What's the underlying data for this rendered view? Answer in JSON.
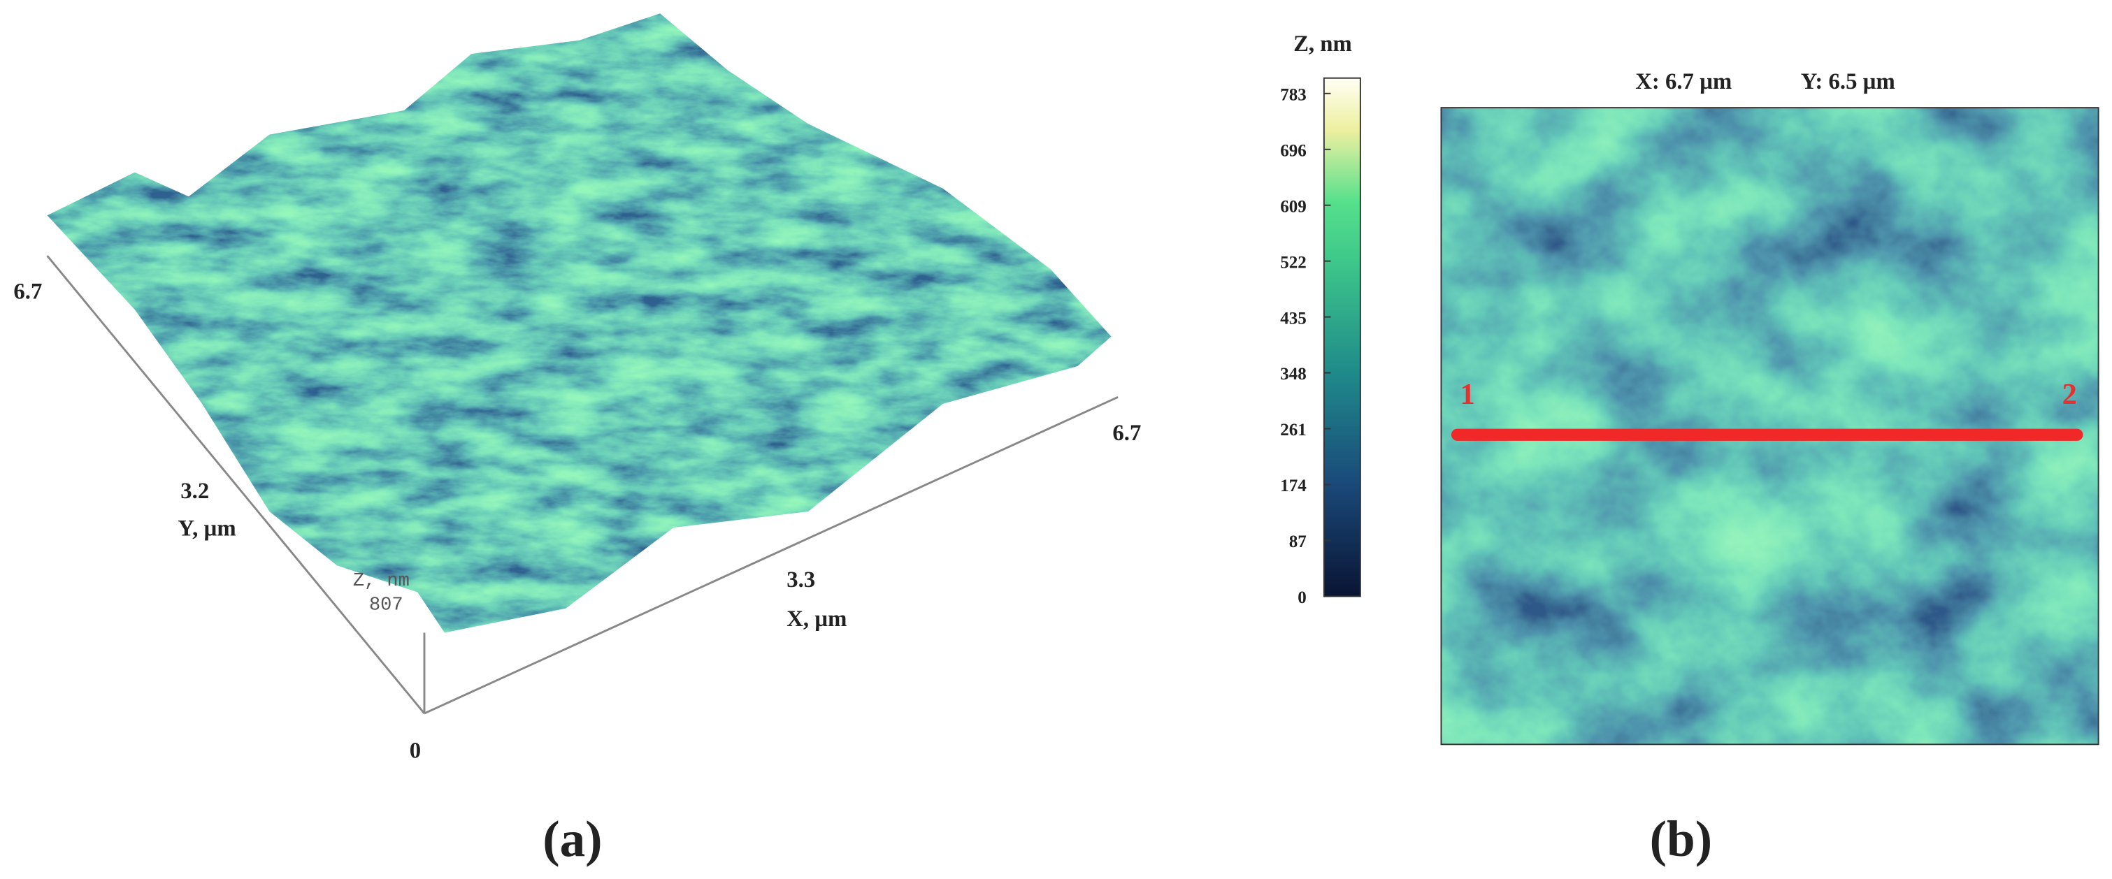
{
  "panel_a": {
    "y_axis": {
      "max": "6.7",
      "mid": "3.2",
      "label": "Y, µm"
    },
    "x_axis": {
      "mid": "3.3",
      "max": "6.7",
      "label": "X, µm"
    },
    "z_axis": {
      "label": "Z, nm",
      "max": "807"
    },
    "origin": "0",
    "caption": "(a)"
  },
  "colorbar": {
    "label": "Z, nm",
    "zlim": [
      0,
      807
    ],
    "ticks": [
      783,
      696,
      609,
      522,
      435,
      348,
      261,
      174,
      87,
      0
    ]
  },
  "panel_b": {
    "title_x": "X: 6.7 µm",
    "title_y": "Y: 6.5 µm",
    "profile_start": "1",
    "profile_end": "2",
    "caption": "(b)"
  }
}
